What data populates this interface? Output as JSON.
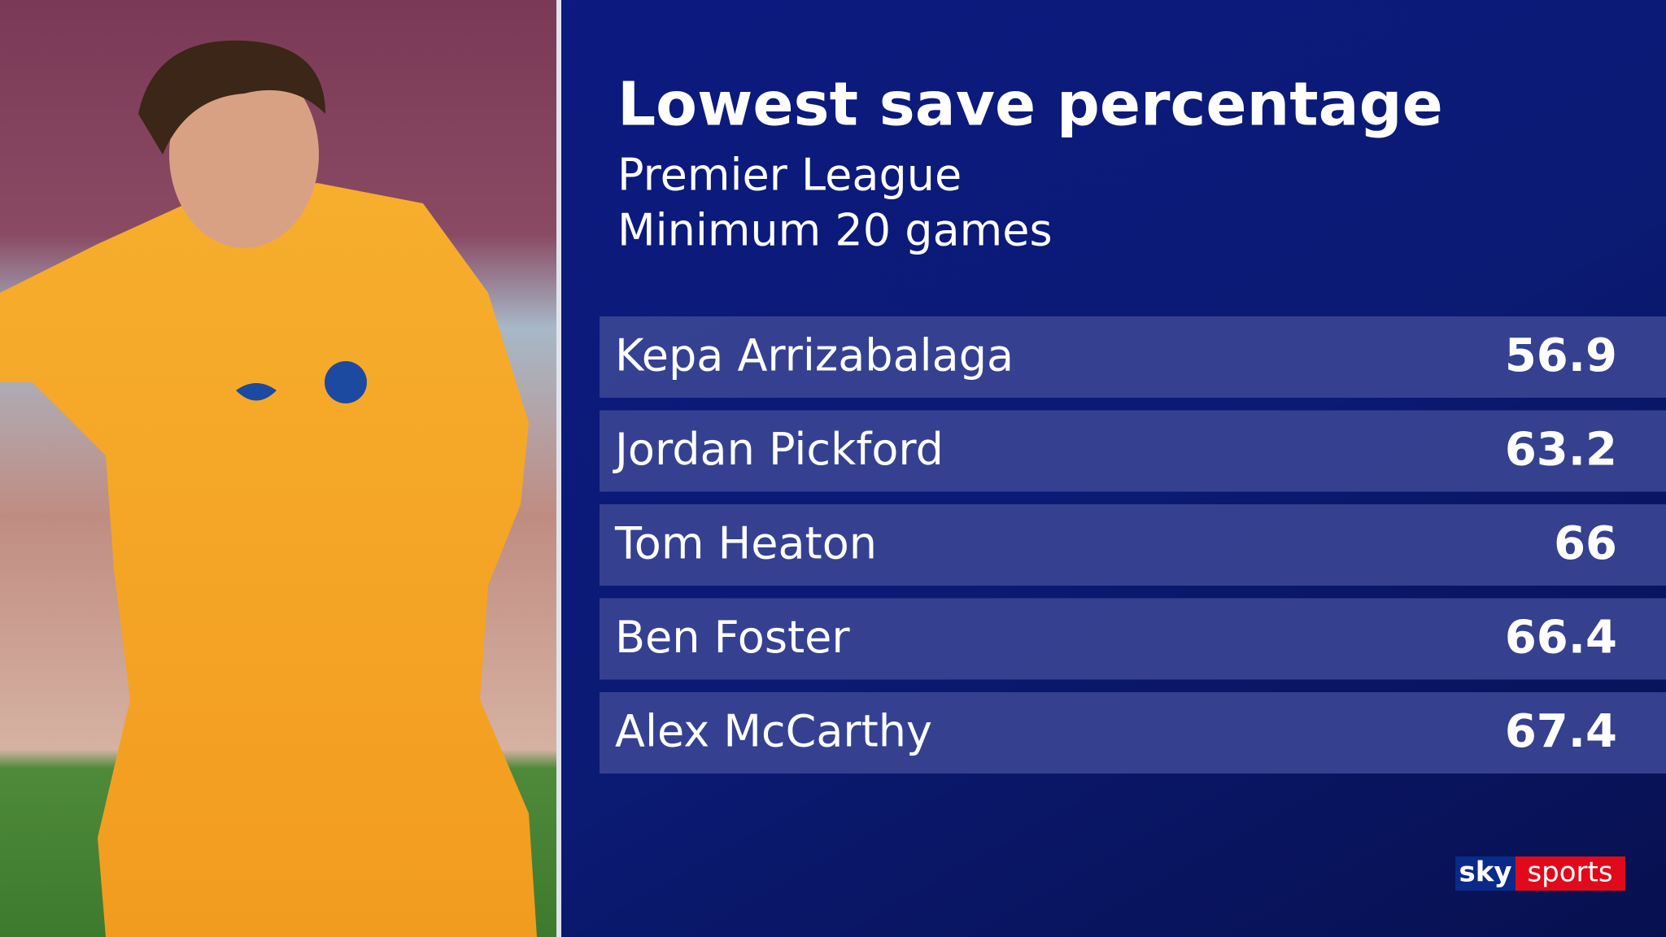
{
  "header": {
    "title": "Lowest save percentage",
    "subtitle": [
      "Premier League",
      "Minimum 20 games"
    ]
  },
  "table": {
    "rows": [
      [
        "Kepa Arrizabalaga",
        56.9
      ],
      [
        "Jordan Pickford",
        63.2
      ],
      [
        "Tom Heaton",
        66
      ],
      [
        "Ben Foster",
        66.4
      ],
      [
        "Alex McCarthy",
        67.4
      ]
    ]
  },
  "logo": {
    "sky": "sky",
    "sports": "sports"
  }
}
